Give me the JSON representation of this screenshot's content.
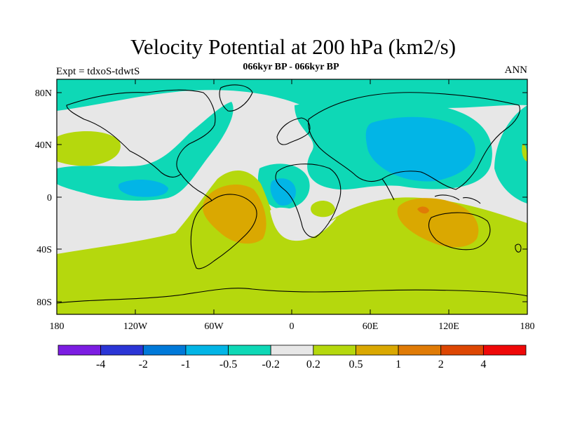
{
  "title": "Velocity Potential at 200 hPa (km2/s)",
  "subtitle": "066kyr BP - 066kyr BP",
  "left_label": "Expt = tdxoS-tdwtS",
  "right_label": "ANN",
  "y_ticks": [
    "80N",
    "40N",
    "0",
    "40S",
    "80S"
  ],
  "x_ticks": [
    "180",
    "120W",
    "60W",
    "0",
    "60E",
    "120E",
    "180"
  ],
  "colorbar": {
    "colors": [
      "#7c1de2",
      "#2b35d6",
      "#0079d9",
      "#02b5e6",
      "#0ed8b6",
      "#e7e7e7",
      "#b5d80d",
      "#daa801",
      "#e07b06",
      "#dd4603",
      "#ef0808"
    ],
    "labels": [
      "-4",
      "-2",
      "-1",
      "-0.5",
      "-0.2",
      "0.2",
      "0.5",
      "1",
      "2",
      "4"
    ]
  },
  "chart_data": {
    "type": "heatmap",
    "title": "Velocity Potential at 200 hPa (km2/s)",
    "variable": "velocity potential",
    "level": "200 hPa",
    "units": "km2/s",
    "experiment": "tdxoS-tdwtS",
    "period": "066kyr BP - 066kyr BP",
    "season": "ANN",
    "xlim": [
      -180,
      180
    ],
    "ylim": [
      -90,
      90
    ],
    "contour_levels": [
      -4,
      -2,
      -1,
      -0.5,
      -0.2,
      0.2,
      0.5,
      1,
      2,
      4
    ]
  }
}
